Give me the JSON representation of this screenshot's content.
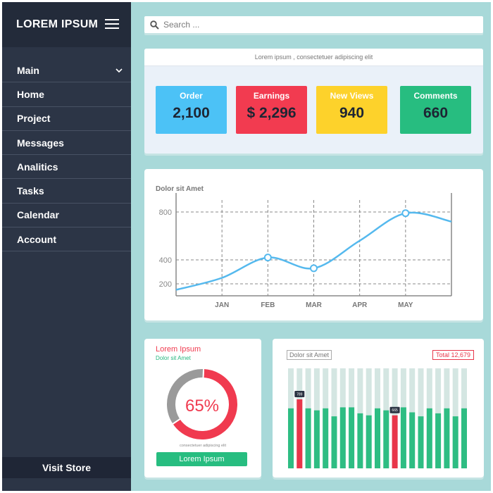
{
  "sidebar": {
    "brand": "LOREM IPSUM",
    "items": [
      {
        "label": "Main"
      },
      {
        "label": "Home"
      },
      {
        "label": "Project"
      },
      {
        "label": "Messages"
      },
      {
        "label": "Analitics"
      },
      {
        "label": "Tasks"
      },
      {
        "label": "Calendar"
      },
      {
        "label": "Account"
      }
    ],
    "visit_store": "Visit Store"
  },
  "search": {
    "placeholder": "Search ..."
  },
  "stats": {
    "header": "Lorem ipsum , consectetuer adipiscing elit",
    "cards": [
      {
        "label": "Order",
        "value": "2,100",
        "color": "#4cc2f6"
      },
      {
        "label": "Earnings",
        "value": "$ 2,296",
        "color": "#f23b50"
      },
      {
        "label": "New Views",
        "value": "940",
        "color": "#fdd22b"
      },
      {
        "label": "Comments",
        "value": "660",
        "color": "#27bd80"
      }
    ]
  },
  "line_chart": {
    "title": "Dolor sit Amet"
  },
  "donut": {
    "title": "Lorem Ipsum",
    "subtitle": "Dolor sit Amet",
    "percent_label": "65%",
    "note": "consectetuer adipiscing elit",
    "button": "Lorem Ipsum"
  },
  "bars": {
    "title": "Dolor sit Amet",
    "total": "Total 12,679"
  },
  "chart_data": [
    {
      "type": "line",
      "title": "Dolor sit Amet",
      "categories": [
        "JAN",
        "FEB",
        "MAR",
        "APR",
        "MAY"
      ],
      "x": [
        "",
        "JAN",
        "FEB",
        "MAR",
        "APR",
        "MAY",
        ""
      ],
      "y_ticks": [
        200,
        400,
        800
      ],
      "values": [
        150,
        250,
        420,
        330,
        560,
        790,
        720
      ],
      "markers": [
        {
          "x": "FEB",
          "y": 420
        },
        {
          "x": "MAR",
          "y": 330
        },
        {
          "x": "MAY",
          "y": 790
        }
      ],
      "color": "#55b9ee",
      "grid": true
    },
    {
      "type": "pie",
      "values": [
        65,
        35
      ],
      "labels": [
        "65%",
        ""
      ],
      "colors": [
        "#f03a4f",
        "#9a9a9a"
      ]
    },
    {
      "type": "bar",
      "title": "Dolor sit Amet",
      "values": [
        0.6,
        0.69,
        0.6,
        0.58,
        0.6,
        0.52,
        0.61,
        0.61,
        0.55,
        0.53,
        0.6,
        0.58,
        0.53,
        0.61,
        0.56,
        0.52,
        0.6,
        0.55,
        0.6,
        0.52,
        0.6
      ],
      "highlight": [
        {
          "index": 1,
          "label": "789"
        },
        {
          "index": 12,
          "label": "665"
        }
      ],
      "colors": {
        "bar": "#2ebd83",
        "highlight": "#e8364a",
        "track": "#d4e6e2"
      }
    }
  ]
}
